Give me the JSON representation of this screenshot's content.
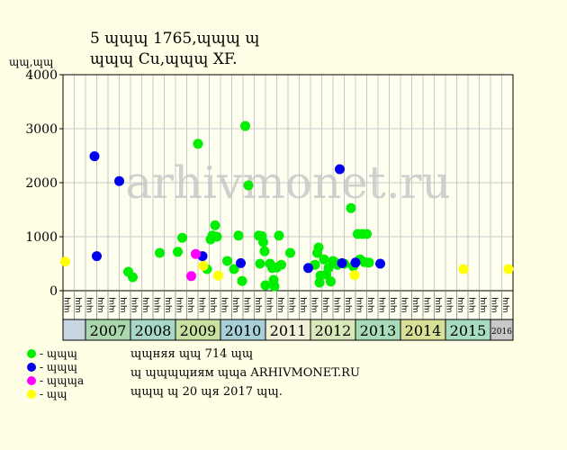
{
  "header": {
    "title_line1": "5 ɰɰɰ 1765,ɰɰɰ ɰ",
    "title_line2": "ɰɰɰ Cu,ɰɰɰ XF.",
    "unit_label": "ɰɰ,ɰɰ"
  },
  "watermark": "arhivmonet.ru",
  "legend": [
    {
      "label": "- ɰɰɰ",
      "color": "#00ee00"
    },
    {
      "label": "- ɰɰɰ",
      "color": "#0000ee"
    },
    {
      "label": "- ɰɰɰa",
      "color": "#ff00ff"
    },
    {
      "label": "- ɰɰ",
      "color": "#ffff00"
    }
  ],
  "notes": [
    "ɰɰняя ɰɰ 714 ɰɰ",
    "ɰ ɰɰɰɰиям ɰɰa ARHIVMONET.RU",
    "ɰɰɰ ɰ 20 ɰя 2017 ɰɰ."
  ],
  "chart_data": {
    "type": "scatter",
    "ylim": [
      0,
      4000
    ],
    "yticks": [
      0,
      1000,
      2000,
      3000,
      4000
    ],
    "grid": true,
    "xlim": [
      2006.5,
      2016.5
    ],
    "years": [
      {
        "label": "2007",
        "start": 2007,
        "end": 2008,
        "color": "#aad8ac"
      },
      {
        "label": "2008",
        "start": 2008,
        "end": 2009,
        "color": "#a8d8c8"
      },
      {
        "label": "2009",
        "start": 2009,
        "end": 2010,
        "color": "#c8e0a0"
      },
      {
        "label": "2010",
        "start": 2010,
        "end": 2011,
        "color": "#a8d0d8"
      },
      {
        "label": "2011",
        "start": 2011,
        "end": 2012,
        "color": "#f0f0d8"
      },
      {
        "label": "2012",
        "start": 2012,
        "end": 2013,
        "color": "#d8e8b8"
      },
      {
        "label": "2013",
        "start": 2013,
        "end": 2014,
        "color": "#a8dcb8"
      },
      {
        "label": "2014",
        "start": 2014,
        "end": 2015,
        "color": "#d8e098"
      },
      {
        "label": "2015",
        "start": 2015,
        "end": 2016,
        "color": "#a8dcc0"
      },
      {
        "label": "2016",
        "start": 2016,
        "end": 2016.5,
        "color": "#c8c8c8"
      }
    ],
    "quarter_labels": [
      "ɰɰ",
      "ɰɰ",
      "ɰɰ",
      "ɰɰ"
    ],
    "series": [
      {
        "condition": "green",
        "color": "#00ee00",
        "points": [
          [
            2007.95,
            350
          ],
          [
            2008.05,
            250
          ],
          [
            2008.65,
            700
          ],
          [
            2009.05,
            720
          ],
          [
            2009.15,
            980
          ],
          [
            2009.5,
            2720
          ],
          [
            2009.7,
            400
          ],
          [
            2009.78,
            950
          ],
          [
            2009.82,
            1020
          ],
          [
            2009.88,
            1210
          ],
          [
            2009.92,
            1000
          ],
          [
            2010.15,
            550
          ],
          [
            2010.3,
            400
          ],
          [
            2010.4,
            1020
          ],
          [
            2010.48,
            180
          ],
          [
            2010.55,
            3050
          ],
          [
            2010.62,
            1950
          ],
          [
            2010.85,
            1020
          ],
          [
            2010.88,
            500
          ],
          [
            2010.92,
            1010
          ],
          [
            2010.95,
            900
          ],
          [
            2010.98,
            730
          ],
          [
            2011.0,
            100
          ],
          [
            2011.1,
            500
          ],
          [
            2011.15,
            420
          ],
          [
            2011.18,
            200
          ],
          [
            2011.2,
            80
          ],
          [
            2011.25,
            430
          ],
          [
            2011.3,
            1020
          ],
          [
            2011.35,
            480
          ],
          [
            2011.55,
            700
          ],
          [
            2012.1,
            480
          ],
          [
            2012.15,
            700
          ],
          [
            2012.18,
            800
          ],
          [
            2012.2,
            150
          ],
          [
            2012.22,
            280
          ],
          [
            2012.3,
            580
          ],
          [
            2012.35,
            300
          ],
          [
            2012.4,
            420
          ],
          [
            2012.45,
            170
          ],
          [
            2012.5,
            550
          ],
          [
            2012.55,
            520
          ],
          [
            2012.6,
            480
          ],
          [
            2012.75,
            500
          ],
          [
            2012.9,
            1530
          ],
          [
            2012.95,
            450
          ],
          [
            2013.05,
            1050
          ],
          [
            2013.1,
            580
          ],
          [
            2013.15,
            1050
          ],
          [
            2013.2,
            530
          ],
          [
            2013.25,
            1050
          ],
          [
            2013.3,
            520
          ]
        ]
      },
      {
        "condition": "blue",
        "color": "#0000ee",
        "points": [
          [
            2007.2,
            2490
          ],
          [
            2007.25,
            640
          ],
          [
            2007.75,
            2030
          ],
          [
            2009.6,
            640
          ],
          [
            2010.45,
            510
          ],
          [
            2011.95,
            420
          ],
          [
            2012.65,
            2250
          ],
          [
            2012.7,
            510
          ],
          [
            2013.0,
            520
          ],
          [
            2013.55,
            500
          ]
        ]
      },
      {
        "condition": "magenta",
        "color": "#ff00ff",
        "points": [
          [
            2009.35,
            270
          ],
          [
            2009.45,
            680
          ]
        ]
      },
      {
        "condition": "yellow",
        "color": "#ffff00",
        "points": [
          [
            2006.55,
            540
          ],
          [
            2009.62,
            460
          ],
          [
            2009.95,
            280
          ],
          [
            2012.98,
            290
          ],
          [
            2015.4,
            400
          ],
          [
            2016.4,
            400
          ]
        ]
      }
    ]
  }
}
